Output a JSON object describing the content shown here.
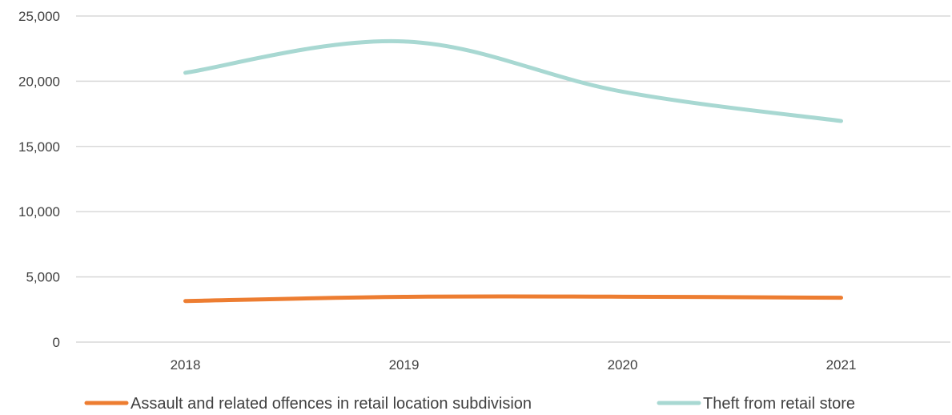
{
  "chart_data": {
    "type": "line",
    "title": "",
    "xlabel": "",
    "ylabel": "",
    "categories": [
      "2018",
      "2019",
      "2020",
      "2021"
    ],
    "y_ticks": [
      "0",
      "5,000",
      "10,000",
      "15,000",
      "20,000",
      "25,000"
    ],
    "ylim": [
      0,
      25000
    ],
    "grid": true,
    "legend_position": "bottom",
    "series": [
      {
        "name": "Assault and related offences in retail location subdivision",
        "color": "#ED7D31",
        "values": [
          3150,
          3470,
          3480,
          3400
        ]
      },
      {
        "name": "Theft from retail store",
        "color": "#A8D8D2",
        "values": [
          20650,
          23050,
          19200,
          16950
        ]
      }
    ]
  }
}
